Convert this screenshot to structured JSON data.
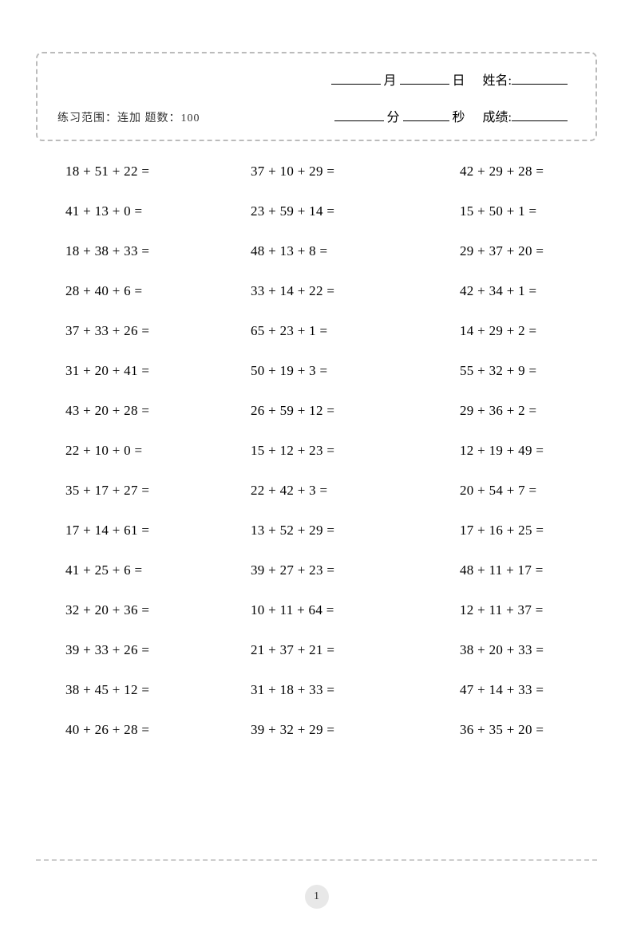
{
  "header": {
    "subtitle": "练习范围：连加  题数：100",
    "month_label": "月",
    "day_label": "日",
    "minute_label": "分",
    "second_label": "秒",
    "name_label": "姓名:",
    "score_label": "成绩:"
  },
  "styling": {
    "page_bg": "#ffffff",
    "border_color": "#bbbbbb",
    "text_color": "#000000",
    "subtitle_color": "#333333",
    "footer_dash_color": "#cccccc",
    "page_circle_bg": "#e8e8e8",
    "problem_fontsize": 17,
    "subtitle_fontsize": 14,
    "label_fontsize": 16,
    "columns": 3,
    "rows": 15,
    "row_gap": 30
  },
  "problems": {
    "col1": [
      "18 + 51 + 22 =",
      "41 + 13 + 0 =",
      "18 + 38 + 33 =",
      "28 + 40 + 6 =",
      "37 + 33 + 26 =",
      "31 + 20 + 41 =",
      "43 + 20 + 28 =",
      "22 + 10 + 0 =",
      "35 + 17 + 27 =",
      "17 + 14 + 61 =",
      "41 + 25 + 6 =",
      "32 + 20 + 36 =",
      "39 + 33 + 26 =",
      "38 + 45 + 12 =",
      "40 + 26 + 28 ="
    ],
    "col2": [
      "37 + 10 + 29 =",
      "23 + 59 + 14 =",
      "48 + 13 + 8 =",
      "33 + 14 + 22 =",
      "65 + 23 + 1 =",
      "50 + 19 + 3 =",
      "26 + 59 + 12 =",
      "15 + 12 + 23 =",
      "22 + 42 + 3 =",
      "13 + 52 + 29 =",
      "39 + 27 + 23 =",
      "10 + 11 + 64 =",
      "21 + 37 + 21 =",
      "31 + 18 + 33 =",
      "39 + 32 + 29 ="
    ],
    "col3": [
      "42 + 29 + 28 =",
      "15 + 50 + 1 =",
      "29 + 37 + 20 =",
      "42 + 34 + 1 =",
      "14 + 29 + 2 =",
      "55 + 32 + 9 =",
      "29 + 36 + 2 =",
      "12 + 19 + 49 =",
      "20 + 54 + 7 =",
      "17 + 16 + 25 =",
      "48 + 11 + 17 =",
      "12 + 11 + 37 =",
      "38 + 20 + 33 =",
      "47 + 14 + 33 =",
      "36 + 35 + 20 ="
    ]
  },
  "page_number": "1"
}
